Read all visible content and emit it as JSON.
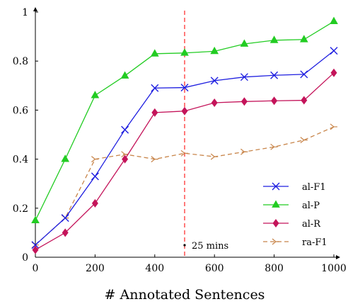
{
  "chart_data": {
    "type": "line",
    "xlabel": "# Annotated Sentences",
    "ylabel": "",
    "xlim": [
      0,
      1000
    ],
    "ylim": [
      0,
      1
    ],
    "xticks": [
      "0",
      "200",
      "400",
      "600",
      "800",
      "1000"
    ],
    "xtick_values": [
      0,
      200,
      400,
      600,
      800,
      1000
    ],
    "yticks": [
      "0",
      "0.2",
      "0.4",
      "0.6",
      "0.8",
      "1"
    ],
    "ytick_values": [
      0,
      0.2,
      0.4,
      0.6,
      0.8,
      1
    ],
    "grid": false,
    "legend_position": "bottom-right",
    "x": [
      0,
      100,
      200,
      300,
      400,
      500,
      600,
      700,
      800,
      900,
      1000
    ],
    "series": [
      {
        "name": "al-F1",
        "color": "#1f1fe0",
        "marker": "cross",
        "dash": "solid",
        "values": [
          0.05,
          0.16,
          0.33,
          0.52,
          0.69,
          0.692,
          0.72,
          0.735,
          0.742,
          0.746,
          0.842
        ]
      },
      {
        "name": "al-P",
        "color": "#22cc22",
        "marker": "triangle",
        "dash": "solid",
        "values": [
          0.15,
          0.4,
          0.66,
          0.74,
          0.83,
          0.833,
          0.84,
          0.87,
          0.885,
          0.888,
          0.962
        ]
      },
      {
        "name": "al-R",
        "color": "#c4145a",
        "marker": "diamond",
        "dash": "solid",
        "values": [
          0.03,
          0.1,
          0.22,
          0.4,
          0.59,
          0.596,
          0.63,
          0.635,
          0.638,
          0.64,
          0.752
        ]
      },
      {
        "name": "ra-F1",
        "color": "#c8854a",
        "marker": "tri-right",
        "dash": "dashed",
        "values": [
          0.05,
          0.16,
          0.4,
          0.42,
          0.4,
          0.424,
          0.41,
          0.43,
          0.45,
          0.478,
          0.532
        ]
      }
    ],
    "annotation": {
      "x": 500,
      "label": "25 mins",
      "color": "#ff3333"
    }
  }
}
